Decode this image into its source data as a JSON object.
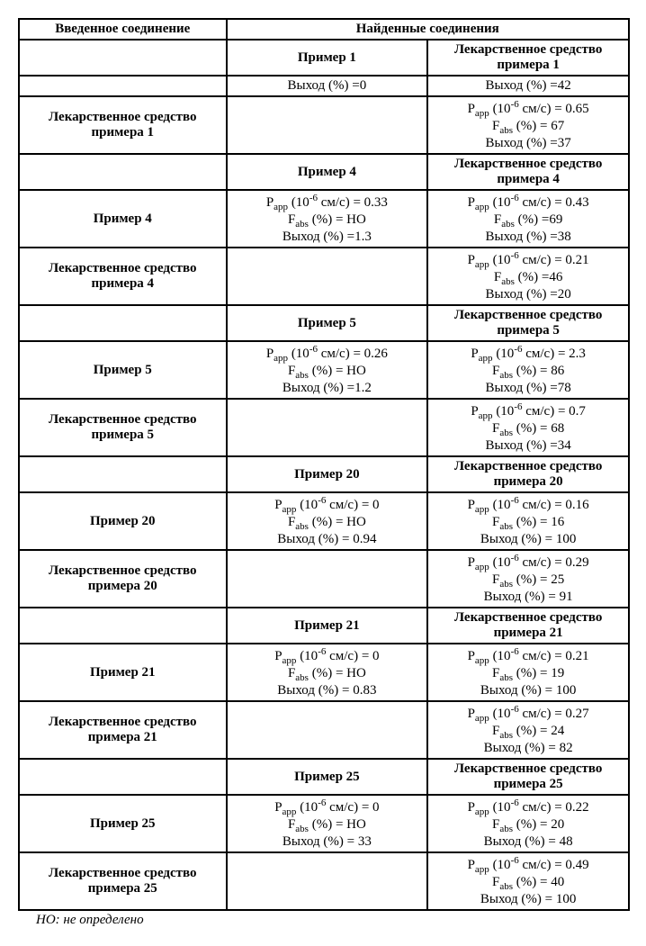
{
  "table": {
    "border_color": "#000000",
    "background_color": "#ffffff",
    "text_color": "#000000",
    "font_family": "Times New Roman",
    "font_size_pt": 12,
    "col_widths_pct": [
      34,
      33,
      33
    ],
    "headers": {
      "h0": "Введенное соединение",
      "h1": "Найденные соединения"
    },
    "units": {
      "papp_html": "P<sub>app</sub> (10<sup>-6</sup> см/с)",
      "fabs_html": "F<sub>abs</sub> (%)",
      "yield": "Выход (%)"
    },
    "sections": [
      {
        "col1_header": "Пример 1",
        "col2_header": "Лекарственное средство примера 1",
        "rows": [
          {
            "label": "",
            "col1": {
              "yield": "=0"
            },
            "col2": {
              "yield": "=42"
            }
          },
          {
            "label": "Лекарственное средство примера 1",
            "col1": null,
            "col2": {
              "papp": "= 0.65",
              "fabs": "= 67",
              "yield": "=37"
            }
          }
        ]
      },
      {
        "col1_header": "Пример 4",
        "col2_header": "Лекарственное средство примера 4",
        "rows": [
          {
            "label": "Пример 4",
            "col1": {
              "papp": "= 0.33",
              "fabs": "= НО",
              "yield": "=1.3"
            },
            "col2": {
              "papp": "= 0.43",
              "fabs": "=69",
              "yield": "=38"
            }
          },
          {
            "label": "Лекарственное средство примера 4",
            "col1": null,
            "col2": {
              "papp": "= 0.21",
              "fabs": "=46",
              "yield": "=20"
            }
          }
        ]
      },
      {
        "col1_header": "Пример 5",
        "col2_header": "Лекарственное средство примера 5",
        "rows": [
          {
            "label": "Пример 5",
            "col1": {
              "papp": "= 0.26",
              "fabs": "= НО",
              "yield": "=1.2"
            },
            "col2": {
              "papp": "= 2.3",
              "fabs": "= 86",
              "yield": "=78"
            }
          },
          {
            "label": "Лекарственное средство примера 5",
            "col1": null,
            "col2": {
              "papp": "= 0.7",
              "fabs": "= 68",
              "yield": "=34"
            }
          }
        ]
      },
      {
        "col1_header": "Пример 20",
        "col2_header": "Лекарственное средство примера 20",
        "rows": [
          {
            "label": "Пример 20",
            "col1": {
              "papp": "= 0",
              "fabs": "= НО",
              "yield": "= 0.94"
            },
            "col2": {
              "papp": "= 0.16",
              "fabs": "= 16",
              "yield": "= 100"
            }
          },
          {
            "label": "Лекарственное средство примера 20",
            "col1": null,
            "col2": {
              "papp": "= 0.29",
              "fabs": "= 25",
              "yield": "= 91"
            }
          }
        ]
      },
      {
        "col1_header": "Пример 21",
        "col2_header": "Лекарственное средство примера 21",
        "rows": [
          {
            "label": "Пример 21",
            "col1": {
              "papp": "= 0",
              "fabs": "= НО",
              "yield": "= 0.83"
            },
            "col2": {
              "papp": "= 0.21",
              "fabs": "= 19",
              "yield": "= 100"
            }
          },
          {
            "label": "Лекарственное средство примера 21",
            "col1": null,
            "col2": {
              "papp": "= 0.27",
              "fabs": "= 24",
              "yield": "= 82"
            }
          }
        ]
      },
      {
        "col1_header": "Пример 25",
        "col2_header": "Лекарственное средство примера 25",
        "rows": [
          {
            "label": "Пример 25",
            "col1": {
              "papp": "= 0",
              "fabs": "= НО",
              "yield": "= 33"
            },
            "col2": {
              "papp": "= 0.22",
              "fabs": "= 20",
              "yield": "= 48"
            }
          },
          {
            "label": "Лекарственное средство примера 25",
            "col1": null,
            "col2": {
              "papp": "= 0.49",
              "fabs": "= 40",
              "yield": "= 100"
            }
          }
        ]
      }
    ],
    "footnote": "НО: не определено"
  }
}
